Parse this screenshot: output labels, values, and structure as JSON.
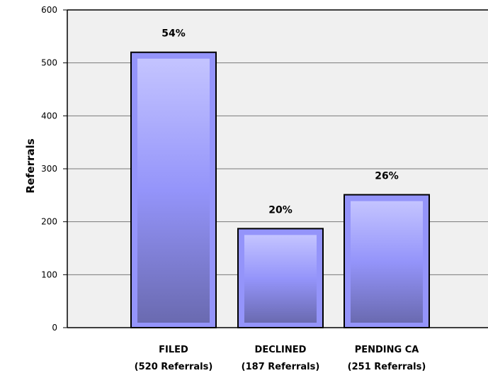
{
  "chart_data": {
    "type": "bar",
    "title": "",
    "xlabel": "",
    "ylabel": "Referrals",
    "ylim": [
      0,
      600
    ],
    "yticks": [
      0,
      100,
      200,
      300,
      400,
      500,
      600
    ],
    "grid": true,
    "categories": [
      "FILED",
      "DECLINED",
      "PENDING CA"
    ],
    "category_sublabels": [
      "(520 Referrals)",
      "(187 Referrals)",
      "(251 Referrals)"
    ],
    "values": [
      520,
      187,
      251
    ],
    "data_labels": [
      "54%",
      "20%",
      "26%"
    ],
    "colors": {
      "plot_background": "#f0f0f0",
      "bar_top": "#c4c4ff",
      "bar_mid": "#9494fa",
      "bar_bottom": "#6a6ab0",
      "bar_outline": "#000000",
      "gridline": "#7a7a7a"
    }
  }
}
